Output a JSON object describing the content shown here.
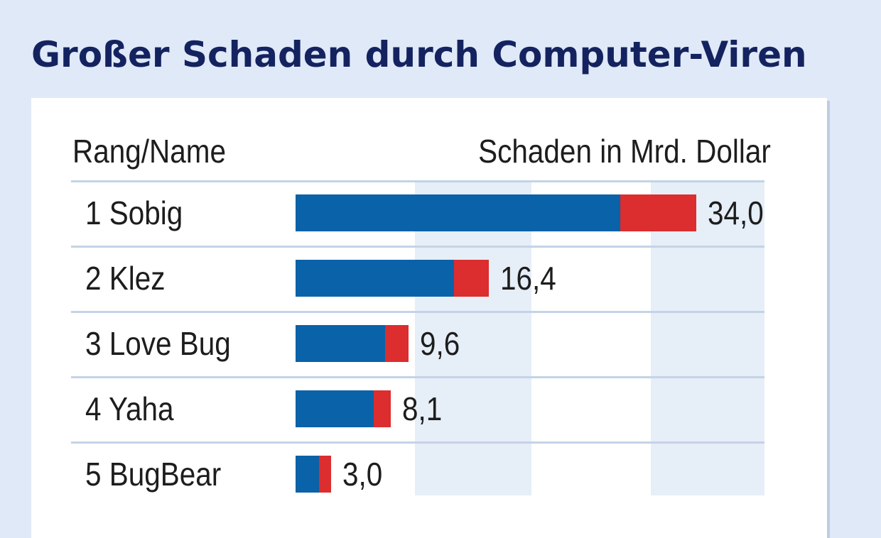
{
  "chart_data": {
    "type": "bar",
    "title": "Großer Schaden durch Computer-Viren",
    "category_header": "Rang/Name",
    "value_header": "Schaden in Mrd. Dollar",
    "colors": {
      "primary_segment": "#0a62a8",
      "secondary_segment": "#dc2d2f",
      "title": "#14235f",
      "background": "#dfe9f8"
    },
    "categories": [
      "1  Sobig",
      "2  Klez",
      "3  Love Bug",
      "4  Yaha",
      "5  BugBear"
    ],
    "values": [
      34.0,
      16.4,
      9.6,
      8.1,
      3.0
    ],
    "value_labels": [
      "34,0",
      "16,4",
      "9,6",
      "8,1",
      "3,0"
    ],
    "primary_share": [
      0.81,
      0.82,
      0.79,
      0.82,
      0.66
    ],
    "xlim": [
      0,
      40
    ],
    "grid": false
  }
}
